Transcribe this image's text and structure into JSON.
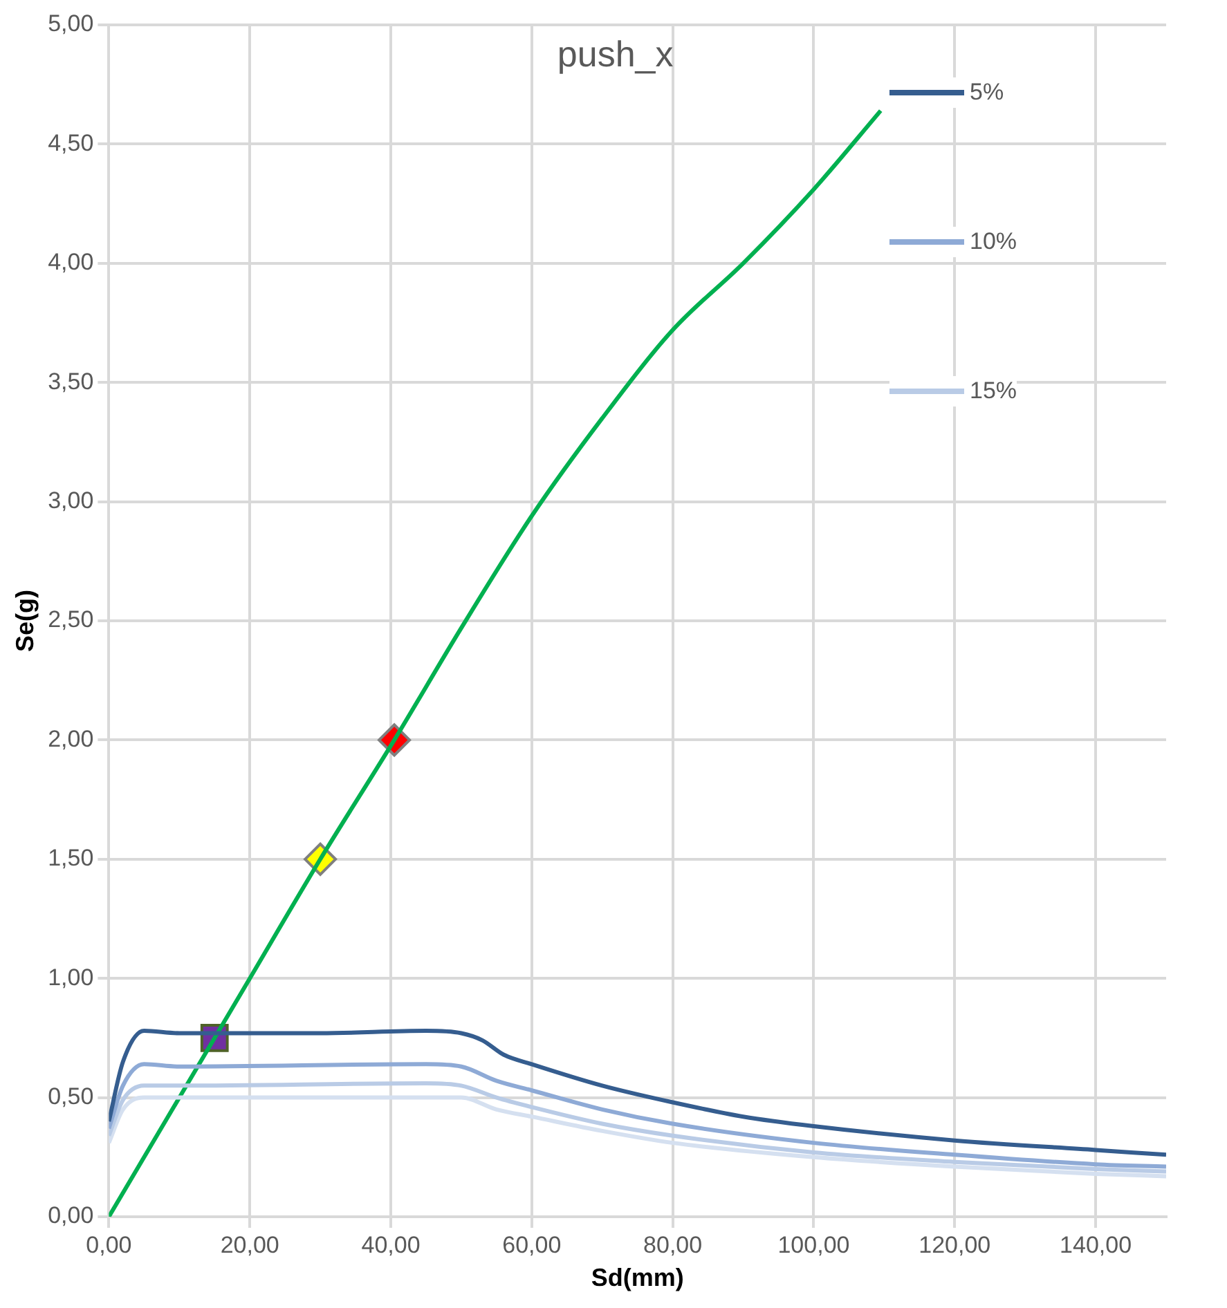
{
  "chart_data": {
    "type": "line",
    "title": "push_x",
    "xlabel": "Sd(mm)",
    "ylabel": "Se(g)",
    "xlim": [
      0,
      150
    ],
    "xticks": [
      {
        "value": 0,
        "label": "0,00"
      },
      {
        "value": 20,
        "label": "20,00"
      },
      {
        "value": 40,
        "label": "40,00"
      },
      {
        "value": 60,
        "label": "60,00"
      },
      {
        "value": 80,
        "label": "80,00"
      },
      {
        "value": 100,
        "label": "100,00"
      },
      {
        "value": 120,
        "label": "120,00"
      },
      {
        "value": 140,
        "label": "140,00"
      }
    ],
    "ylim": [
      0,
      5
    ],
    "yticks": [
      {
        "value": 0,
        "label": "0,00"
      },
      {
        "value": 0.5,
        "label": "0,50"
      },
      {
        "value": 1,
        "label": "1,00"
      },
      {
        "value": 1.5,
        "label": "1,50"
      },
      {
        "value": 2,
        "label": "2,00"
      },
      {
        "value": 2.5,
        "label": "2,50"
      },
      {
        "value": 3,
        "label": "3,00"
      },
      {
        "value": 3.5,
        "label": "3,50"
      },
      {
        "value": 4,
        "label": "4,00"
      },
      {
        "value": 4.5,
        "label": "4,50"
      },
      {
        "value": 5,
        "label": "5,00"
      }
    ],
    "grid": true,
    "legend": "top right",
    "marker": "none",
    "line_style": "solid",
    "series": [
      {
        "name": "5%",
        "color": "#355d8f",
        "x": [
          0,
          2,
          5,
          10,
          30,
          45,
          50,
          53,
          56,
          60,
          70,
          80,
          90,
          100,
          120,
          140,
          150
        ],
        "values": [
          0.4,
          0.65,
          0.78,
          0.77,
          0.77,
          0.78,
          0.77,
          0.74,
          0.68,
          0.64,
          0.55,
          0.48,
          0.42,
          0.38,
          0.32,
          0.28,
          0.26
        ]
      },
      {
        "name": "10%",
        "color": "#8eaad6",
        "x": [
          0,
          2,
          5,
          10,
          45,
          50,
          55,
          60,
          70,
          80,
          100,
          120,
          140,
          150
        ],
        "values": [
          0.37,
          0.55,
          0.64,
          0.63,
          0.64,
          0.63,
          0.57,
          0.53,
          0.45,
          0.39,
          0.31,
          0.26,
          0.22,
          0.21
        ]
      },
      {
        "name": "15%",
        "color": "#b9cbe6",
        "x": [
          0,
          2,
          5,
          10,
          45,
          50,
          55,
          60,
          70,
          80,
          100,
          120,
          140,
          150
        ],
        "values": [
          0.34,
          0.49,
          0.55,
          0.55,
          0.56,
          0.55,
          0.5,
          0.46,
          0.39,
          0.34,
          0.27,
          0.23,
          0.2,
          0.19
        ]
      },
      {
        "color": "#d5e0f0",
        "x": [
          0,
          2,
          5,
          45,
          50,
          55,
          60,
          70,
          80,
          100,
          120,
          140,
          150
        ],
        "values": [
          0.31,
          0.45,
          0.5,
          0.5,
          0.5,
          0.45,
          0.42,
          0.36,
          0.31,
          0.25,
          0.21,
          0.18,
          0.17
        ]
      },
      {
        "color": "#00b050",
        "x": [
          0,
          20,
          30,
          40.5,
          50,
          60,
          70,
          80,
          90,
          100,
          109.5
        ],
        "values": [
          0,
          1,
          1.5,
          2,
          2.47,
          2.94,
          3.35,
          3.72,
          4.0,
          4.31,
          4.64
        ]
      },
      {
        "type": "scatter",
        "color": "#7030a0",
        "marker": "square",
        "x": [
          15
        ],
        "values": [
          0.75
        ]
      },
      {
        "type": "scatter",
        "color": "#ffff00",
        "marker": "diamond",
        "x": [
          30
        ],
        "values": [
          1.5
        ]
      },
      {
        "type": "scatter",
        "color": "#ff0000",
        "marker": "diamond",
        "x": [
          40.5
        ],
        "values": [
          2
        ]
      }
    ]
  }
}
